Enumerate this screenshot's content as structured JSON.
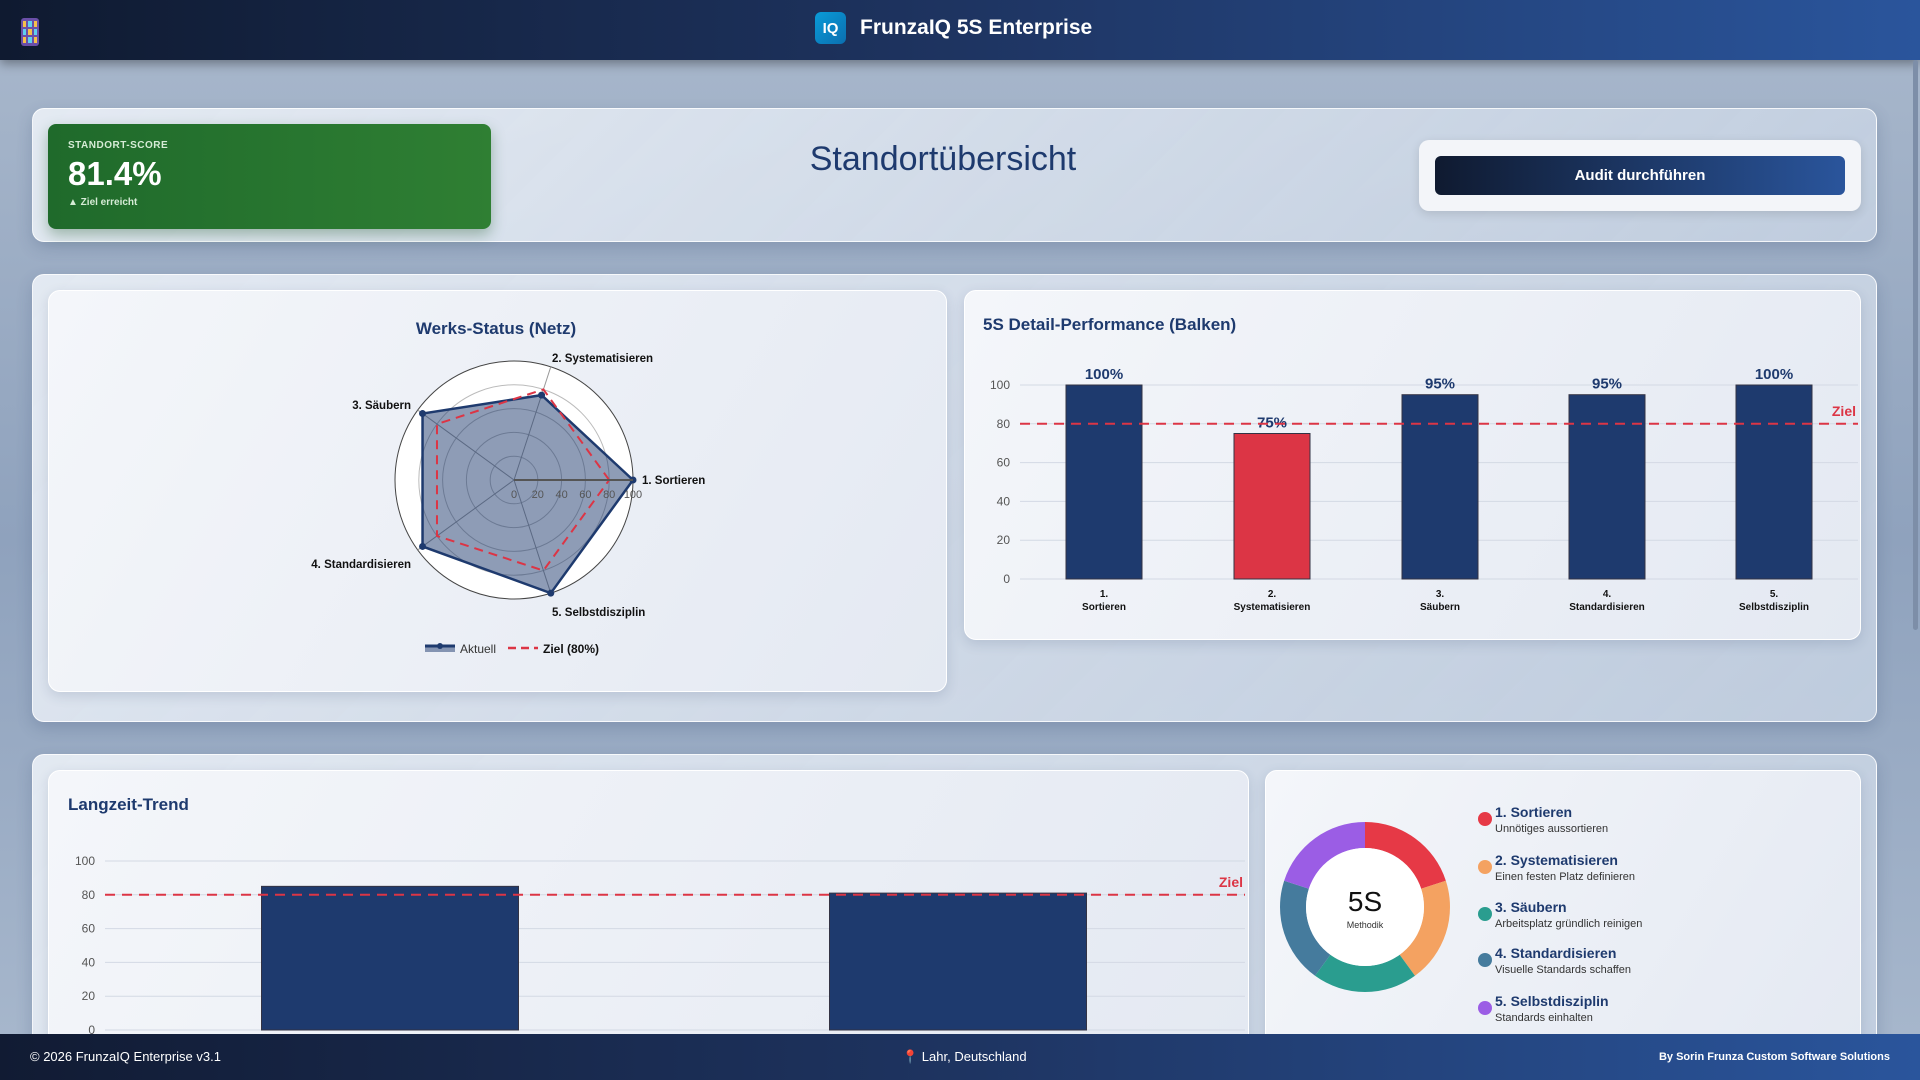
{
  "header": {
    "app_icon": "calculator-icon",
    "logo": "IQ",
    "title": "FrunzaIQ 5S Enterprise"
  },
  "score": {
    "label": "STANDORT-SCORE",
    "value": "81.4%",
    "status": "▲ Ziel erreicht",
    "color": "#2e7d32"
  },
  "page_title": "Standortübersicht",
  "audit_button": "Audit durchführen",
  "radar": {
    "title": "Werks-Status (Netz)",
    "categories": [
      "1. Sortieren",
      "2. Systematisieren",
      "3. Säubern",
      "4. Standardisieren",
      "5. Selbstdisziplin"
    ],
    "aktuell": [
      100,
      75,
      95,
      95,
      100
    ],
    "ziel": [
      80,
      80,
      80,
      80,
      80
    ],
    "ticks": [
      "0",
      "20",
      "40",
      "60",
      "80",
      "100"
    ],
    "legend": {
      "aktuell": "Aktuell",
      "ziel": "Ziel (80%)"
    }
  },
  "chart_data": [
    {
      "type": "bar",
      "title": "5S Detail-Performance (Balken)",
      "categories": [
        "1. Sortieren",
        "2. Systematisieren",
        "3. Säubern",
        "4. Standardisieren",
        "5. Selbstdisziplin"
      ],
      "values": [
        100,
        75,
        95,
        95,
        100
      ],
      "data_labels": [
        "100%",
        "75%",
        "95%",
        "95%",
        "100%"
      ],
      "ylim": [
        0,
        100
      ],
      "yticks": [
        "0",
        "20",
        "40",
        "60",
        "80",
        "100"
      ],
      "target": 80,
      "target_label": "Ziel",
      "colors": {
        "above": "#1e3a6e",
        "below": "#dc3545",
        "target": "#dc3545"
      },
      "grid": true
    },
    {
      "type": "bar",
      "title": "Langzeit-Trend",
      "values": [
        85,
        81
      ],
      "ylim": [
        0,
        100
      ],
      "yticks": [
        "0",
        "20",
        "40",
        "60",
        "80",
        "100"
      ],
      "target": 80,
      "target_label": "Ziel",
      "grid": true
    },
    {
      "type": "pie",
      "center_title": "5S",
      "center_sub": "Methodik",
      "values": [
        1,
        1,
        1,
        1,
        1
      ],
      "colors": [
        "#e63946",
        "#f4a261",
        "#2a9d8f",
        "#457b9d",
        "#9b5de5"
      ]
    }
  ],
  "legend5s": [
    {
      "title": "1. Sortieren",
      "desc": "Unnötiges aussortieren",
      "color": "#e63946"
    },
    {
      "title": "2. Systematisieren",
      "desc": "Einen festen Platz definieren",
      "color": "#f4a261"
    },
    {
      "title": "3. Säubern",
      "desc": "Arbeitsplatz gründlich reinigen",
      "color": "#2a9d8f"
    },
    {
      "title": "4. Standardisieren",
      "desc": "Visuelle Standards schaffen",
      "color": "#457b9d"
    },
    {
      "title": "5. Selbstdisziplin",
      "desc": "Standards einhalten",
      "color": "#9b5de5"
    }
  ],
  "footer": {
    "copyright": "© 2026 FrunzaIQ Enterprise v3.1",
    "location": "📍 Lahr, Deutschland",
    "credit": "By Sorin Frunza Custom Software Solutions"
  }
}
